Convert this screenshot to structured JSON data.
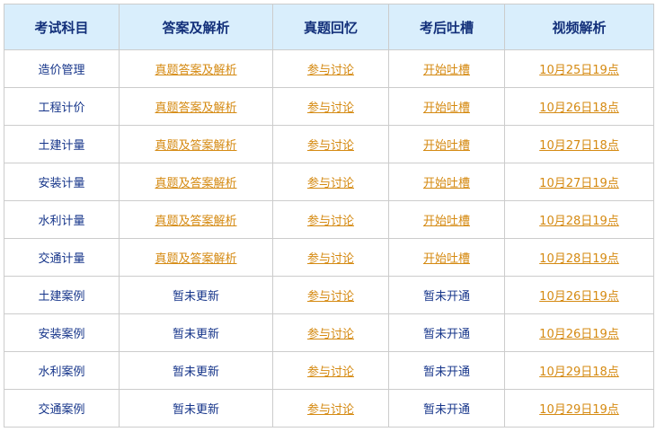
{
  "headers": [
    "考试科目",
    "答案及解析",
    "真题回忆",
    "考后吐槽",
    "视频解析"
  ],
  "rows": [
    {
      "subject": "造价管理",
      "answer": "真题答案及解析",
      "answer_link": true,
      "recall": "参与讨论",
      "comment": "开始吐槽",
      "comment_link": true,
      "video": "10月25日19点"
    },
    {
      "subject": "工程计价",
      "answer": "真题答案及解析",
      "answer_link": true,
      "recall": "参与讨论",
      "comment": "开始吐槽",
      "comment_link": true,
      "video": "10月26日18点"
    },
    {
      "subject": "土建计量",
      "answer": "真题及答案解析",
      "answer_link": true,
      "recall": "参与讨论",
      "comment": "开始吐槽",
      "comment_link": true,
      "video": "10月27日18点"
    },
    {
      "subject": "安装计量",
      "answer": "真题及答案解析",
      "answer_link": true,
      "recall": "参与讨论",
      "comment": "开始吐槽",
      "comment_link": true,
      "video": "10月27日19点"
    },
    {
      "subject": "水利计量",
      "answer": "真题及答案解析",
      "answer_link": true,
      "recall": "参与讨论",
      "comment": "开始吐槽",
      "comment_link": true,
      "video": "10月28日19点"
    },
    {
      "subject": "交通计量",
      "answer": "真题及答案解析",
      "answer_link": true,
      "recall": "参与讨论",
      "comment": "开始吐槽",
      "comment_link": true,
      "video": "10月28日19点"
    },
    {
      "subject": "土建案例",
      "answer": "暂未更新",
      "answer_link": false,
      "recall": "参与讨论",
      "comment": "暂未开通",
      "comment_link": false,
      "video": "10月26日19点"
    },
    {
      "subject": "安装案例",
      "answer": "暂未更新",
      "answer_link": false,
      "recall": "参与讨论",
      "comment": "暂未开通",
      "comment_link": false,
      "video": "10月26日19点"
    },
    {
      "subject": "水利案例",
      "answer": "暂未更新",
      "answer_link": false,
      "recall": "参与讨论",
      "comment": "暂未开通",
      "comment_link": false,
      "video": "10月29日18点"
    },
    {
      "subject": "交通案例",
      "answer": "暂未更新",
      "answer_link": false,
      "recall": "参与讨论",
      "comment": "暂未开通",
      "comment_link": false,
      "video": "10月29日19点"
    }
  ],
  "colors": {
    "header_bg": "#d9eefc",
    "text": "#16358a",
    "link": "#d58a12",
    "border": "#cccccc"
  }
}
